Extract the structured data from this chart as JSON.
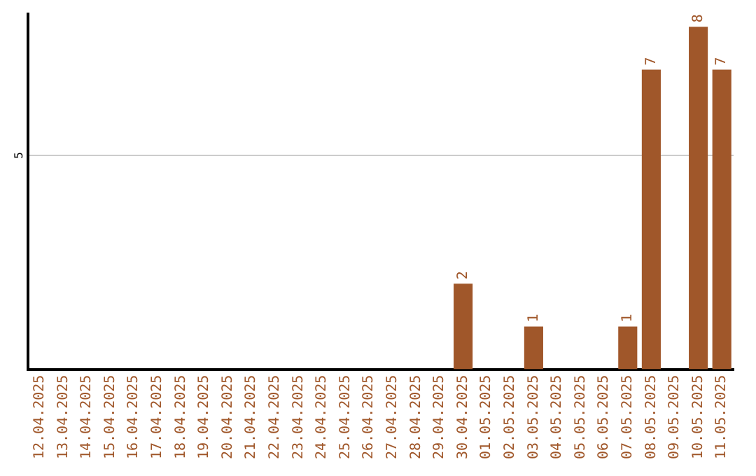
{
  "chart_data": {
    "type": "bar",
    "categories": [
      "12.04.2025",
      "13.04.2025",
      "14.04.2025",
      "15.04.2025",
      "16.04.2025",
      "17.04.2025",
      "18.04.2025",
      "19.04.2025",
      "20.04.2025",
      "21.04.2025",
      "22.04.2025",
      "23.04.2025",
      "24.04.2025",
      "25.04.2025",
      "26.04.2025",
      "27.04.2025",
      "28.04.2025",
      "29.04.2025",
      "30.04.2025",
      "01.05.2025",
      "02.05.2025",
      "03.05.2025",
      "04.05.2025",
      "05.05.2025",
      "06.05.2025",
      "07.05.2025",
      "08.05.2025",
      "09.05.2025",
      "10.05.2025",
      "11.05.2025"
    ],
    "values": [
      null,
      null,
      null,
      null,
      null,
      null,
      null,
      null,
      null,
      null,
      null,
      null,
      null,
      null,
      null,
      null,
      null,
      null,
      2,
      null,
      null,
      1,
      null,
      null,
      null,
      1,
      7,
      null,
      8,
      7
    ],
    "color": "#a0572a",
    "ylim": [
      0,
      8.3
    ],
    "yticks": [
      5
    ],
    "grid": "y",
    "data_labels": true,
    "legend": false
  }
}
